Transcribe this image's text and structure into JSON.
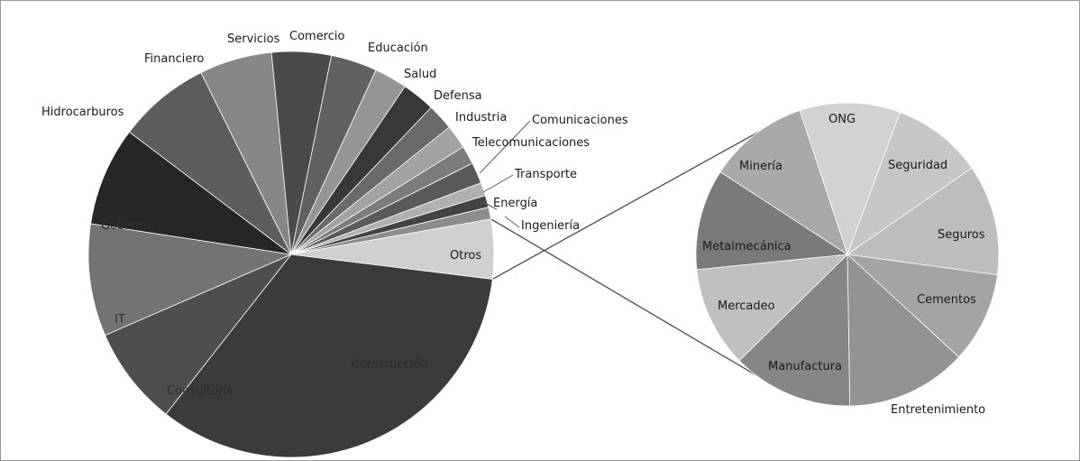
{
  "chart_data": {
    "type": "pie",
    "variant": "pie-of-pie",
    "main": {
      "slices": [
        {
          "label": "Construcción",
          "value": 32,
          "color": "#3b3b3b"
        },
        {
          "label": "Consultoría",
          "value": 7.5,
          "color": "#4e4e4e"
        },
        {
          "label": "IT",
          "value": 8.5,
          "color": "#737373"
        },
        {
          "label": "Gobierno",
          "value": 7.5,
          "color": "#262626"
        },
        {
          "label": "Hidrocarburos",
          "value": 7,
          "color": "#5d5d5d"
        },
        {
          "label": "Financiero",
          "value": 5.5,
          "color": "#878787"
        },
        {
          "label": "Servicios",
          "value": 4.5,
          "color": "#4a4a4a"
        },
        {
          "label": "Comercio",
          "value": 3.5,
          "color": "#616161"
        },
        {
          "label": "Educación",
          "value": 2.5,
          "color": "#959595"
        },
        {
          "label": "Salud",
          "value": 2.5,
          "color": "#383838"
        },
        {
          "label": "Defensa",
          "value": 2,
          "color": "#6a6a6a"
        },
        {
          "label": "Industria",
          "value": 1.8,
          "color": "#a2a2a2"
        },
        {
          "label": "Comunicaciones",
          "value": 1.4,
          "color": "#7c7c7c"
        },
        {
          "label": "Telecomunicaciones",
          "value": 1.6,
          "color": "#5a5a5a"
        },
        {
          "label": "Transporte",
          "value": 1,
          "color": "#b0b0b0"
        },
        {
          "label": "Energía",
          "value": 0.9,
          "color": "#434343"
        },
        {
          "label": "Ingeniería",
          "value": 0.9,
          "color": "#8d8d8d"
        },
        {
          "label": "Otros",
          "value": 4.5,
          "color": "#d0d0d0"
        }
      ]
    },
    "secondary": {
      "source": "Otros",
      "slices": [
        {
          "label": "ONG",
          "value": 10,
          "color": "#d2d2d2"
        },
        {
          "label": "Seguridad",
          "value": 9,
          "color": "#c6c6c6"
        },
        {
          "label": "Seguros",
          "value": 11,
          "color": "#bdbdbd"
        },
        {
          "label": "Cementos",
          "value": 9,
          "color": "#a4a4a4"
        },
        {
          "label": "Entretenimiento",
          "value": 12,
          "color": "#939393"
        },
        {
          "label": "Manufactura",
          "value": 12,
          "color": "#868686"
        },
        {
          "label": "Mercadeo",
          "value": 10,
          "color": "#c0c0c0"
        },
        {
          "label": "Metalmecánica",
          "value": 10,
          "color": "#7a7a7a"
        },
        {
          "label": "Minería",
          "value": 10,
          "color": "#a9a9a9"
        }
      ]
    }
  }
}
